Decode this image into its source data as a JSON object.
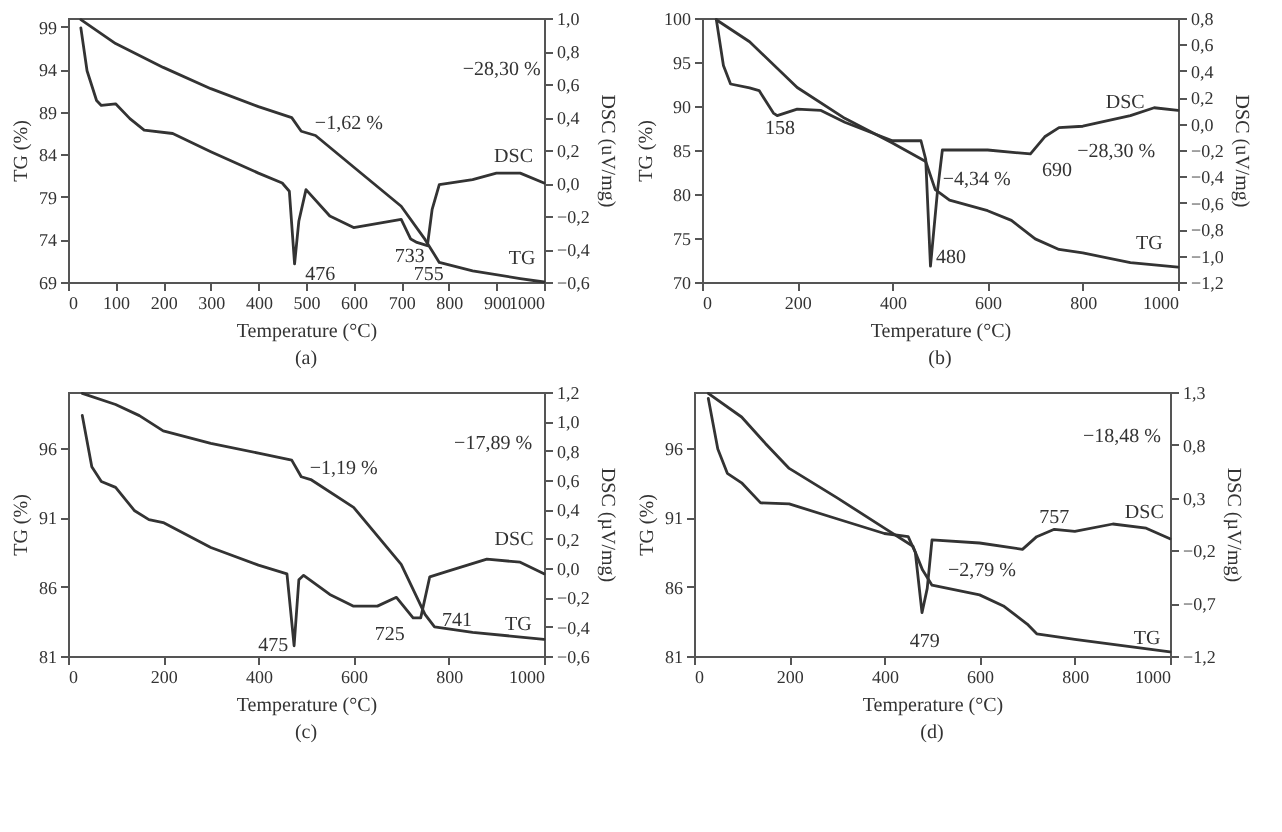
{
  "chart_data": [
    {
      "type": "line",
      "title": "(a)",
      "xlabel": "Temperature (°C)",
      "ylabel": "TG (%)",
      "y2label": "DSC (uV/mg)",
      "xlim": [
        0,
        1000
      ],
      "xticks": [
        0,
        100,
        200,
        300,
        400,
        500,
        600,
        700,
        800,
        900,
        1000
      ],
      "ylim": [
        69,
        100
      ],
      "yticks": [
        69,
        74,
        79,
        84,
        89,
        94,
        99
      ],
      "y2lim": [
        -0.6,
        1.0
      ],
      "y2ticks": [
        {
          "value": -0.6,
          "label": "−0,6"
        },
        {
          "value": -0.4,
          "label": "−0,4"
        },
        {
          "value": -0.2,
          "label": "−0,2"
        },
        {
          "value": 0,
          "label": "0,0"
        },
        {
          "value": 0.2,
          "label": "0,2"
        },
        {
          "value": 0.4,
          "label": "0,4"
        },
        {
          "value": 0.6,
          "label": "0,6"
        },
        {
          "value": 0.8,
          "label": "0,8"
        },
        {
          "value": 1.0,
          "label": "1,0"
        }
      ],
      "series": [
        {
          "color": "#333333",
          "x": [
            27,
            100,
            200,
            300,
            400,
            470,
            490,
            520,
            600,
            700,
            750,
            780,
            850,
            950,
            1000
          ],
          "values": [
            99.8,
            97.0,
            94.2,
            91.7,
            89.6,
            88.3,
            86.7,
            86.2,
            82.5,
            77.9,
            74.0,
            71.3,
            70.3,
            69.4,
            69.0
          ]
        },
        {
          "color": "#333333",
          "axis": "y2",
          "x": [
            27,
            40,
            60,
            70,
            100,
            130,
            160,
            220,
            300,
            400,
            450,
            465,
            476,
            485,
            500,
            550,
            600,
            700,
            720,
            733,
            755,
            765,
            780,
            850,
            900,
            950,
            1000
          ],
          "values": [
            0.94,
            0.68,
            0.5,
            0.47,
            0.48,
            0.39,
            0.32,
            0.3,
            0.19,
            0.06,
            0.0,
            -0.05,
            -0.49,
            -0.23,
            -0.04,
            -0.2,
            -0.27,
            -0.22,
            -0.34,
            -0.36,
            -0.38,
            -0.16,
            -0.01,
            0.02,
            0.06,
            0.06,
            0.0
          ]
        }
      ],
      "annotations": [
        "−1,62 %",
        "−28,30 %",
        "DSC",
        "TG",
        "476",
        "733",
        "755"
      ]
    },
    {
      "type": "line",
      "title": "(b)",
      "xlabel": "Temperature (°C)",
      "ylabel": "TG (%)",
      "y2label": "DSC (uV/mg)",
      "xlim": [
        0,
        1000
      ],
      "xticks": [
        0,
        200,
        400,
        600,
        800,
        1000
      ],
      "ylim": [
        70,
        100
      ],
      "yticks": [
        70,
        75,
        80,
        85,
        90,
        95,
        100
      ],
      "y2lim": [
        -1.2,
        0.8
      ],
      "y2ticks": [
        {
          "value": -1.2,
          "label": "−1,2"
        },
        {
          "value": -1.0,
          "label": "−1,0"
        },
        {
          "value": -0.8,
          "label": "−0,8"
        },
        {
          "value": -0.6,
          "label": "−0,6"
        },
        {
          "value": -0.4,
          "label": "−0,4"
        },
        {
          "value": -0.2,
          "label": "−0,2"
        },
        {
          "value": 0,
          "label": "0,0"
        },
        {
          "value": 0.2,
          "label": "0,2"
        },
        {
          "value": 0.4,
          "label": "0,4"
        },
        {
          "value": 0.6,
          "label": "0,6"
        },
        {
          "value": 0.8,
          "label": "0,8"
        }
      ],
      "series": [
        {
          "color": "#333333",
          "x": [
            30,
            100,
            200,
            300,
            400,
            470,
            490,
            520,
            600,
            650,
            700,
            750,
            800,
            900,
            1000
          ],
          "values": [
            99.8,
            97.3,
            92.1,
            88.6,
            85.8,
            83.7,
            80.5,
            79.3,
            78.1,
            77.0,
            74.9,
            73.7,
            73.3,
            72.2,
            71.7
          ]
        },
        {
          "color": "#333333",
          "axis": "y2",
          "x": [
            30,
            45,
            60,
            100,
            120,
            150,
            158,
            200,
            250,
            300,
            350,
            400,
            460,
            470,
            480,
            495,
            505,
            600,
            690,
            720,
            750,
            800,
            900,
            950,
            1000
          ],
          "values": [
            0.79,
            0.44,
            0.3,
            0.27,
            0.25,
            0.08,
            0.06,
            0.11,
            0.1,
            0.01,
            -0.06,
            -0.13,
            -0.13,
            -0.27,
            -1.08,
            -0.5,
            -0.2,
            -0.2,
            -0.23,
            -0.1,
            -0.03,
            -0.02,
            0.06,
            0.12,
            0.1
          ]
        }
      ],
      "annotations": [
        "158",
        "480",
        "690",
        "−4,34 %",
        "−28,30 %",
        "DSC",
        "TG"
      ]
    },
    {
      "type": "line",
      "title": "(c)",
      "xlabel": "Temperature (°C)",
      "ylabel": "TG (%)",
      "y2label": "DSC (µV/mg)",
      "xlim": [
        0,
        1000
      ],
      "xticks": [
        0,
        200,
        400,
        600,
        800,
        1000
      ],
      "ylim": [
        81,
        100
      ],
      "yticks": [
        81,
        86,
        91,
        96
      ],
      "y2lim": [
        -0.6,
        1.2
      ],
      "y2ticks": [
        {
          "value": -0.6,
          "label": "−0,6"
        },
        {
          "value": -0.4,
          "label": "−0,4"
        },
        {
          "value": -0.2,
          "label": "−0,2"
        },
        {
          "value": 0,
          "label": "0,0"
        },
        {
          "value": 0.2,
          "label": "0,2"
        },
        {
          "value": 0.4,
          "label": "0,4"
        },
        {
          "value": 0.6,
          "label": "0,6"
        },
        {
          "value": 0.8,
          "label": "0,8"
        },
        {
          "value": 1.0,
          "label": "1,0"
        },
        {
          "value": 1.2,
          "label": "1,2"
        }
      ],
      "series": [
        {
          "color": "#333333",
          "x": [
            30,
            100,
            150,
            200,
            300,
            400,
            470,
            490,
            510,
            600,
            700,
            750,
            770,
            850,
            1000
          ],
          "values": [
            99.9,
            99.1,
            98.3,
            97.2,
            96.3,
            95.6,
            95.1,
            93.9,
            93.7,
            91.7,
            87.6,
            84.0,
            83.1,
            82.7,
            82.2
          ]
        },
        {
          "color": "#333333",
          "axis": "y2",
          "x": [
            30,
            50,
            70,
            100,
            140,
            170,
            200,
            300,
            400,
            460,
            475,
            485,
            495,
            550,
            600,
            650,
            690,
            725,
            741,
            760,
            800,
            880,
            950,
            1000
          ],
          "values": [
            1.04,
            0.69,
            0.59,
            0.55,
            0.39,
            0.33,
            0.31,
            0.14,
            0.02,
            -0.04,
            -0.53,
            -0.08,
            -0.05,
            -0.18,
            -0.26,
            -0.26,
            -0.2,
            -0.34,
            -0.34,
            -0.06,
            -0.02,
            0.06,
            0.04,
            -0.04
          ]
        }
      ],
      "annotations": [
        "−1,19 %",
        "−17,89 %",
        "DSC",
        "TG",
        "475",
        "725",
        "741"
      ]
    },
    {
      "type": "line",
      "title": "(d)",
      "xlabel": "Temperature (°C)",
      "ylabel": "TG (%)",
      "y2label": "DSC (µV/mg)",
      "xlim": [
        0,
        1000
      ],
      "xticks": [
        0,
        200,
        400,
        600,
        800,
        1000
      ],
      "ylim": [
        81,
        100
      ],
      "yticks": [
        81,
        86,
        91,
        96
      ],
      "y2lim": [
        -1.2,
        1.3
      ],
      "y2ticks": [
        {
          "value": -1.2,
          "label": "−1,2"
        },
        {
          "value": -0.7,
          "label": "−0,7"
        },
        {
          "value": -0.2,
          "label": "−0,2"
        },
        {
          "value": 0.3,
          "label": "0,3"
        },
        {
          "value": 0.8,
          "label": "0,8"
        },
        {
          "value": 1.3,
          "label": "1,3"
        }
      ],
      "series": [
        {
          "color": "#333333",
          "x": [
            30,
            100,
            150,
            200,
            300,
            400,
            460,
            480,
            500,
            600,
            650,
            700,
            720,
            800,
            1000
          ],
          "values": [
            99.9,
            98.2,
            96.3,
            94.5,
            92.4,
            90.2,
            88.9,
            87.2,
            86.1,
            85.4,
            84.6,
            83.3,
            82.6,
            82.2,
            81.3
          ]
        },
        {
          "color": "#333333",
          "axis": "y2",
          "x": [
            30,
            50,
            70,
            100,
            140,
            200,
            300,
            400,
            450,
            465,
            479,
            490,
            500,
            600,
            690,
            720,
            757,
            800,
            880,
            950,
            1000
          ],
          "values": [
            1.24,
            0.76,
            0.53,
            0.44,
            0.25,
            0.24,
            0.1,
            -0.04,
            -0.07,
            -0.22,
            -0.79,
            -0.56,
            -0.1,
            -0.13,
            -0.19,
            -0.07,
            0.0,
            -0.02,
            0.05,
            0.01,
            -0.09
          ]
        }
      ],
      "annotations": [
        "757",
        "DSC",
        "−2,79 %",
        "479",
        "TG",
        "−18,48 %"
      ]
    }
  ]
}
